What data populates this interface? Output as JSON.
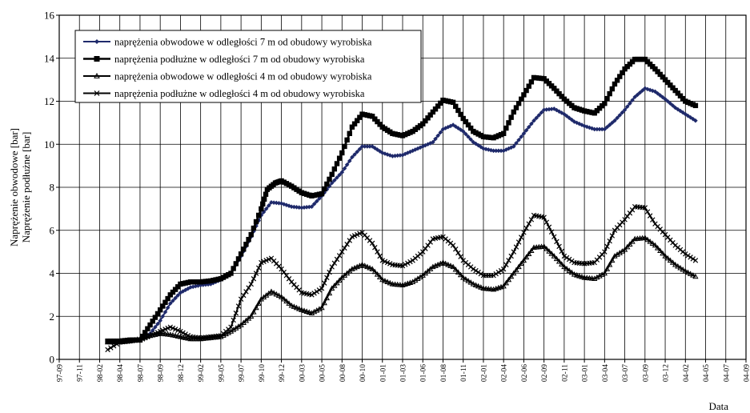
{
  "chart_data": {
    "type": "line",
    "title": "",
    "xlabel": "Data",
    "ylabel_lines": [
      "Naprężenie obwodowe [bar]",
      "Naprężenie podłużne [bar]"
    ],
    "ylim": [
      0,
      16
    ],
    "yticks": [
      0,
      2,
      4,
      6,
      8,
      10,
      12,
      14,
      16
    ],
    "x_tick_labels": [
      "97-09",
      "97-11",
      "98-02",
      "98-04",
      "98-07",
      "98-09",
      "98-12",
      "99-02",
      "99-05",
      "99-07",
      "99-10",
      "99-12",
      "00-03",
      "00-05",
      "00-08",
      "00-10",
      "01-01",
      "01-03",
      "01-06",
      "01-08",
      "01-11",
      "02-01",
      "02-04",
      "02-06",
      "02-09",
      "02-11",
      "03-01",
      "03-04",
      "03-07",
      "03-09",
      "03-12",
      "04-02",
      "04-05",
      "04-07",
      "04-09"
    ],
    "grid": true,
    "legend_position": "top-left",
    "series": [
      {
        "name": "naprężenia obwodowe w odległości 7 m od obudowy wyrobiska",
        "marker": "diamond",
        "color": "#1f2a6b",
        "points": [
          [
            2.4,
            0.8
          ],
          [
            3,
            0.8
          ],
          [
            3.5,
            0.85
          ],
          [
            4,
            0.9
          ],
          [
            4.5,
            1.2
          ],
          [
            5,
            1.8
          ],
          [
            5.5,
            2.6
          ],
          [
            6,
            3.1
          ],
          [
            6.5,
            3.35
          ],
          [
            7,
            3.45
          ],
          [
            7.5,
            3.5
          ],
          [
            8,
            3.7
          ],
          [
            8.5,
            4.0
          ],
          [
            9,
            4.8
          ],
          [
            9.5,
            5.7
          ],
          [
            10,
            6.7
          ],
          [
            10.5,
            7.3
          ],
          [
            11,
            7.25
          ],
          [
            11.5,
            7.1
          ],
          [
            12,
            7.05
          ],
          [
            12.5,
            7.1
          ],
          [
            13,
            7.6
          ],
          [
            13.5,
            8.2
          ],
          [
            14,
            8.7
          ],
          [
            14.5,
            9.4
          ],
          [
            15,
            9.9
          ],
          [
            15.5,
            9.9
          ],
          [
            16,
            9.6
          ],
          [
            16.5,
            9.45
          ],
          [
            17,
            9.5
          ],
          [
            17.5,
            9.7
          ],
          [
            18,
            9.9
          ],
          [
            18.5,
            10.1
          ],
          [
            19,
            10.7
          ],
          [
            19.5,
            10.9
          ],
          [
            20,
            10.6
          ],
          [
            20.5,
            10.1
          ],
          [
            21,
            9.8
          ],
          [
            21.5,
            9.7
          ],
          [
            22,
            9.7
          ],
          [
            22.5,
            9.9
          ],
          [
            23,
            10.5
          ],
          [
            23.5,
            11.1
          ],
          [
            24,
            11.6
          ],
          [
            24.5,
            11.65
          ],
          [
            25,
            11.4
          ],
          [
            25.5,
            11.05
          ],
          [
            26,
            10.85
          ],
          [
            26.5,
            10.7
          ],
          [
            27,
            10.7
          ],
          [
            27.5,
            11.1
          ],
          [
            28,
            11.6
          ],
          [
            28.5,
            12.2
          ],
          [
            29,
            12.6
          ],
          [
            29.5,
            12.45
          ],
          [
            30,
            12.1
          ],
          [
            30.5,
            11.7
          ],
          [
            31,
            11.4
          ],
          [
            31.5,
            11.1
          ]
        ]
      },
      {
        "name": "naprężenia podłużne w odległości 7 m od obudowy wyrobiska",
        "marker": "square",
        "color": "#000000",
        "points": [
          [
            2.4,
            0.85
          ],
          [
            3,
            0.85
          ],
          [
            3.5,
            0.9
          ],
          [
            4,
            0.9
          ],
          [
            4.5,
            1.6
          ],
          [
            5,
            2.3
          ],
          [
            5.5,
            3.0
          ],
          [
            6,
            3.5
          ],
          [
            6.5,
            3.6
          ],
          [
            7,
            3.6
          ],
          [
            7.5,
            3.65
          ],
          [
            8,
            3.75
          ],
          [
            8.5,
            4.0
          ],
          [
            9,
            4.9
          ],
          [
            9.5,
            5.8
          ],
          [
            10,
            7.0
          ],
          [
            10.3,
            7.9
          ],
          [
            10.7,
            8.2
          ],
          [
            11,
            8.3
          ],
          [
            11.5,
            8.05
          ],
          [
            12,
            7.75
          ],
          [
            12.5,
            7.6
          ],
          [
            13,
            7.7
          ],
          [
            13.5,
            8.6
          ],
          [
            14,
            9.6
          ],
          [
            14.5,
            10.8
          ],
          [
            15,
            11.4
          ],
          [
            15.5,
            11.3
          ],
          [
            16,
            10.8
          ],
          [
            16.5,
            10.5
          ],
          [
            17,
            10.4
          ],
          [
            17.5,
            10.6
          ],
          [
            18,
            10.95
          ],
          [
            18.5,
            11.5
          ],
          [
            19,
            12.05
          ],
          [
            19.5,
            11.95
          ],
          [
            20,
            11.2
          ],
          [
            20.5,
            10.6
          ],
          [
            21,
            10.35
          ],
          [
            21.5,
            10.3
          ],
          [
            22,
            10.5
          ],
          [
            22.5,
            11.5
          ],
          [
            23,
            12.3
          ],
          [
            23.5,
            13.1
          ],
          [
            24,
            13.05
          ],
          [
            24.5,
            12.6
          ],
          [
            25,
            12.1
          ],
          [
            25.5,
            11.7
          ],
          [
            26,
            11.55
          ],
          [
            26.5,
            11.45
          ],
          [
            27,
            11.9
          ],
          [
            27.5,
            12.8
          ],
          [
            28,
            13.5
          ],
          [
            28.5,
            13.95
          ],
          [
            29,
            13.95
          ],
          [
            29.5,
            13.5
          ],
          [
            30,
            13.0
          ],
          [
            30.5,
            12.5
          ],
          [
            31,
            12.0
          ],
          [
            31.5,
            11.8
          ]
        ]
      },
      {
        "name": "naprężenia obwodowe w odległości 4 m od obudowy wyrobiska",
        "marker": "triangle",
        "color": "#000000",
        "points": [
          [
            2.4,
            0.8
          ],
          [
            3,
            0.8
          ],
          [
            3.5,
            0.85
          ],
          [
            4,
            0.95
          ],
          [
            4.5,
            1.1
          ],
          [
            5,
            1.2
          ],
          [
            5.5,
            1.15
          ],
          [
            6,
            1.05
          ],
          [
            6.5,
            0.95
          ],
          [
            7,
            0.95
          ],
          [
            7.5,
            1.0
          ],
          [
            8,
            1.05
          ],
          [
            8.5,
            1.3
          ],
          [
            9,
            1.6
          ],
          [
            9.5,
            2.0
          ],
          [
            10,
            2.8
          ],
          [
            10.5,
            3.15
          ],
          [
            11,
            2.9
          ],
          [
            11.5,
            2.5
          ],
          [
            12,
            2.3
          ],
          [
            12.5,
            2.15
          ],
          [
            13,
            2.4
          ],
          [
            13.5,
            3.3
          ],
          [
            14,
            3.8
          ],
          [
            14.5,
            4.2
          ],
          [
            15,
            4.4
          ],
          [
            15.5,
            4.2
          ],
          [
            16,
            3.7
          ],
          [
            16.5,
            3.5
          ],
          [
            17,
            3.45
          ],
          [
            17.5,
            3.6
          ],
          [
            18,
            3.9
          ],
          [
            18.5,
            4.3
          ],
          [
            19,
            4.5
          ],
          [
            19.5,
            4.3
          ],
          [
            20,
            3.8
          ],
          [
            20.5,
            3.5
          ],
          [
            21,
            3.3
          ],
          [
            21.5,
            3.25
          ],
          [
            22,
            3.4
          ],
          [
            22.5,
            4.0
          ],
          [
            23,
            4.6
          ],
          [
            23.5,
            5.2
          ],
          [
            24,
            5.25
          ],
          [
            24.5,
            4.8
          ],
          [
            25,
            4.3
          ],
          [
            25.5,
            3.95
          ],
          [
            26,
            3.8
          ],
          [
            26.5,
            3.75
          ],
          [
            27,
            4.0
          ],
          [
            27.5,
            4.8
          ],
          [
            28,
            5.1
          ],
          [
            28.5,
            5.6
          ],
          [
            29,
            5.65
          ],
          [
            29.5,
            5.3
          ],
          [
            30,
            4.8
          ],
          [
            30.5,
            4.4
          ],
          [
            31,
            4.1
          ],
          [
            31.5,
            3.85
          ]
        ]
      },
      {
        "name": "naprężenia podłużne w odległości 4 m od obudowy wyrobiska",
        "marker": "cross",
        "color": "#000000",
        "points": [
          [
            2.4,
            0.45
          ],
          [
            3,
            0.8
          ],
          [
            3.5,
            0.85
          ],
          [
            4,
            0.9
          ],
          [
            4.5,
            1.1
          ],
          [
            5,
            1.3
          ],
          [
            5.5,
            1.5
          ],
          [
            6,
            1.3
          ],
          [
            6.5,
            1.05
          ],
          [
            7,
            1.0
          ],
          [
            7.5,
            1.05
          ],
          [
            8,
            1.1
          ],
          [
            8.5,
            1.5
          ],
          [
            9,
            2.8
          ],
          [
            9.5,
            3.5
          ],
          [
            10,
            4.5
          ],
          [
            10.5,
            4.7
          ],
          [
            11,
            4.2
          ],
          [
            11.5,
            3.6
          ],
          [
            12,
            3.1
          ],
          [
            12.5,
            3.0
          ],
          [
            13,
            3.3
          ],
          [
            13.5,
            4.3
          ],
          [
            14,
            5.0
          ],
          [
            14.5,
            5.7
          ],
          [
            15,
            5.9
          ],
          [
            15.5,
            5.4
          ],
          [
            16,
            4.6
          ],
          [
            16.5,
            4.4
          ],
          [
            17,
            4.35
          ],
          [
            17.5,
            4.6
          ],
          [
            18,
            5.0
          ],
          [
            18.5,
            5.6
          ],
          [
            19,
            5.7
          ],
          [
            19.5,
            5.3
          ],
          [
            20,
            4.6
          ],
          [
            20.5,
            4.2
          ],
          [
            21,
            3.9
          ],
          [
            21.5,
            3.9
          ],
          [
            22,
            4.2
          ],
          [
            22.5,
            5.0
          ],
          [
            23,
            5.9
          ],
          [
            23.5,
            6.7
          ],
          [
            24,
            6.6
          ],
          [
            24.5,
            5.7
          ],
          [
            25,
            4.8
          ],
          [
            25.5,
            4.5
          ],
          [
            26,
            4.45
          ],
          [
            26.5,
            4.5
          ],
          [
            27,
            5.0
          ],
          [
            27.5,
            6.0
          ],
          [
            28,
            6.5
          ],
          [
            28.5,
            7.1
          ],
          [
            29,
            7.05
          ],
          [
            29.5,
            6.3
          ],
          [
            30,
            5.8
          ],
          [
            30.5,
            5.3
          ],
          [
            31,
            4.9
          ],
          [
            31.5,
            4.6
          ]
        ]
      }
    ]
  }
}
